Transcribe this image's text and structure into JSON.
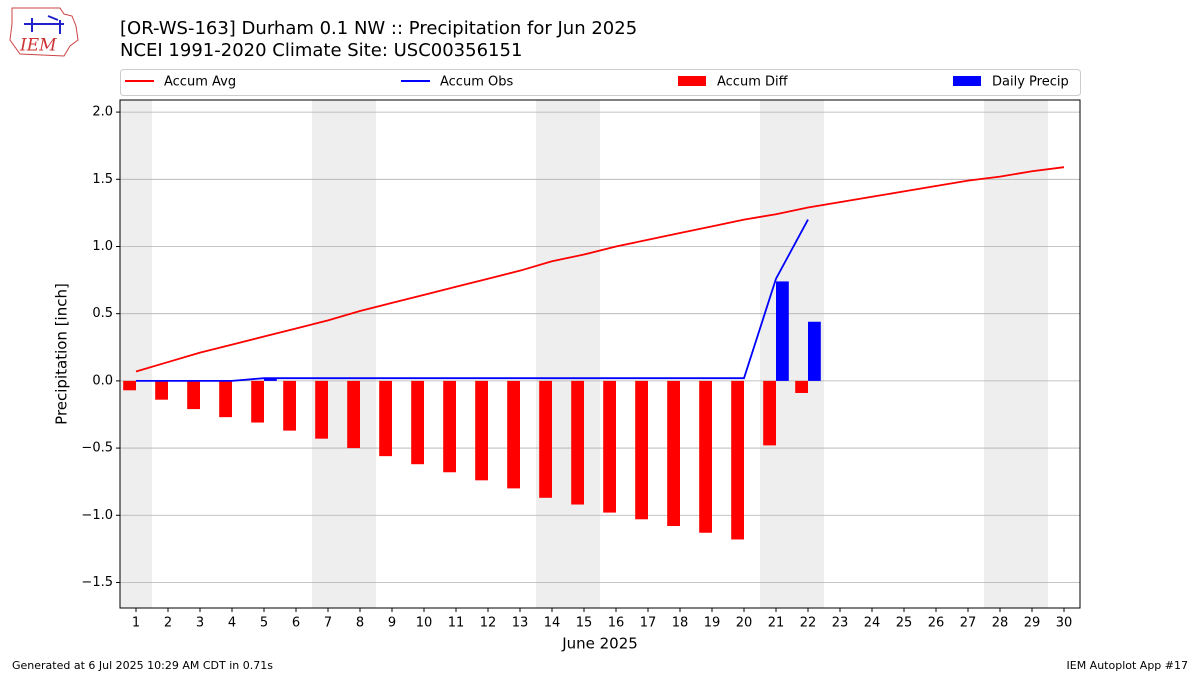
{
  "chart_data": {
    "type": "line-bar",
    "title": "[OR-WS-163] Durham 0.1 NW :: Precipitation for Jun 2025",
    "subtitle": "NCEI 1991-2020 Climate Site: USC00356151",
    "logo_text": "IEM",
    "xlabel": "June 2025",
    "ylabel": "Precipitation [inch]",
    "footer_left": "Generated at 6 Jul 2025 10:29 AM CDT in 0.71s",
    "footer_right": "IEM Autoplot App #17",
    "x": [
      1,
      2,
      3,
      4,
      5,
      6,
      7,
      8,
      9,
      10,
      11,
      12,
      13,
      14,
      15,
      16,
      17,
      18,
      19,
      20,
      21,
      22,
      23,
      24,
      25,
      26,
      27,
      28,
      29,
      30
    ],
    "weekend_days": [
      1,
      7,
      8,
      14,
      15,
      21,
      22,
      28,
      29
    ],
    "xlim": [
      0.5,
      30.5
    ],
    "xticks": [
      1,
      2,
      3,
      4,
      5,
      6,
      7,
      8,
      9,
      10,
      11,
      12,
      13,
      14,
      15,
      16,
      17,
      18,
      19,
      20,
      21,
      22,
      23,
      24,
      25,
      26,
      27,
      28,
      29,
      30
    ],
    "ylim": [
      -1.69,
      2.09
    ],
    "yticks": [
      {
        "value": -1.5,
        "label": "−1.5"
      },
      {
        "value": -1.0,
        "label": "−1.0"
      },
      {
        "value": -0.5,
        "label": "−0.5"
      },
      {
        "value": 0,
        "label": "0.0"
      },
      {
        "value": 0.5,
        "label": "0.5"
      },
      {
        "value": 1.0,
        "label": "1.0"
      },
      {
        "value": 1.5,
        "label": "1.5"
      },
      {
        "value": 2.0,
        "label": "2.0"
      }
    ],
    "grid": true,
    "series": [
      {
        "name": "Accum Avg",
        "kind": "line",
        "color": "#ff0000",
        "values": [
          0.07,
          0.14,
          0.21,
          0.27,
          0.33,
          0.39,
          0.45,
          0.52,
          0.58,
          0.64,
          0.7,
          0.76,
          0.82,
          0.89,
          0.94,
          1.0,
          1.05,
          1.1,
          1.15,
          1.2,
          1.24,
          1.29,
          1.33,
          1.37,
          1.41,
          1.45,
          1.49,
          1.52,
          1.56,
          1.59
        ]
      },
      {
        "name": "Accum Obs",
        "kind": "line",
        "color": "#0000ff",
        "values": [
          0,
          0,
          0,
          0,
          0.02,
          0.02,
          0.02,
          0.02,
          0.02,
          0.02,
          0.02,
          0.02,
          0.02,
          0.02,
          0.02,
          0.02,
          0.02,
          0.02,
          0.02,
          0.02,
          0.76,
          1.2,
          null,
          null,
          null,
          null,
          null,
          null,
          null,
          null
        ]
      },
      {
        "name": "Accum Diff",
        "kind": "bar",
        "offset": "left",
        "color": "#ff0000",
        "values": [
          -0.07,
          -0.14,
          -0.21,
          -0.27,
          -0.31,
          -0.37,
          -0.43,
          -0.5,
          -0.56,
          -0.62,
          -0.68,
          -0.74,
          -0.8,
          -0.87,
          -0.92,
          -0.98,
          -1.03,
          -1.08,
          -1.13,
          -1.18,
          -0.48,
          -0.09,
          null,
          null,
          null,
          null,
          null,
          null,
          null,
          null
        ]
      },
      {
        "name": "Daily Precip",
        "kind": "bar",
        "offset": "right",
        "color": "#0000ff",
        "values": [
          0,
          0,
          0,
          0,
          0.02,
          0,
          0,
          0,
          0,
          0,
          0,
          0,
          0,
          0,
          0,
          0,
          0,
          0,
          0,
          0,
          0.74,
          0.44,
          null,
          null,
          null,
          null,
          null,
          null,
          null,
          null
        ]
      }
    ]
  }
}
